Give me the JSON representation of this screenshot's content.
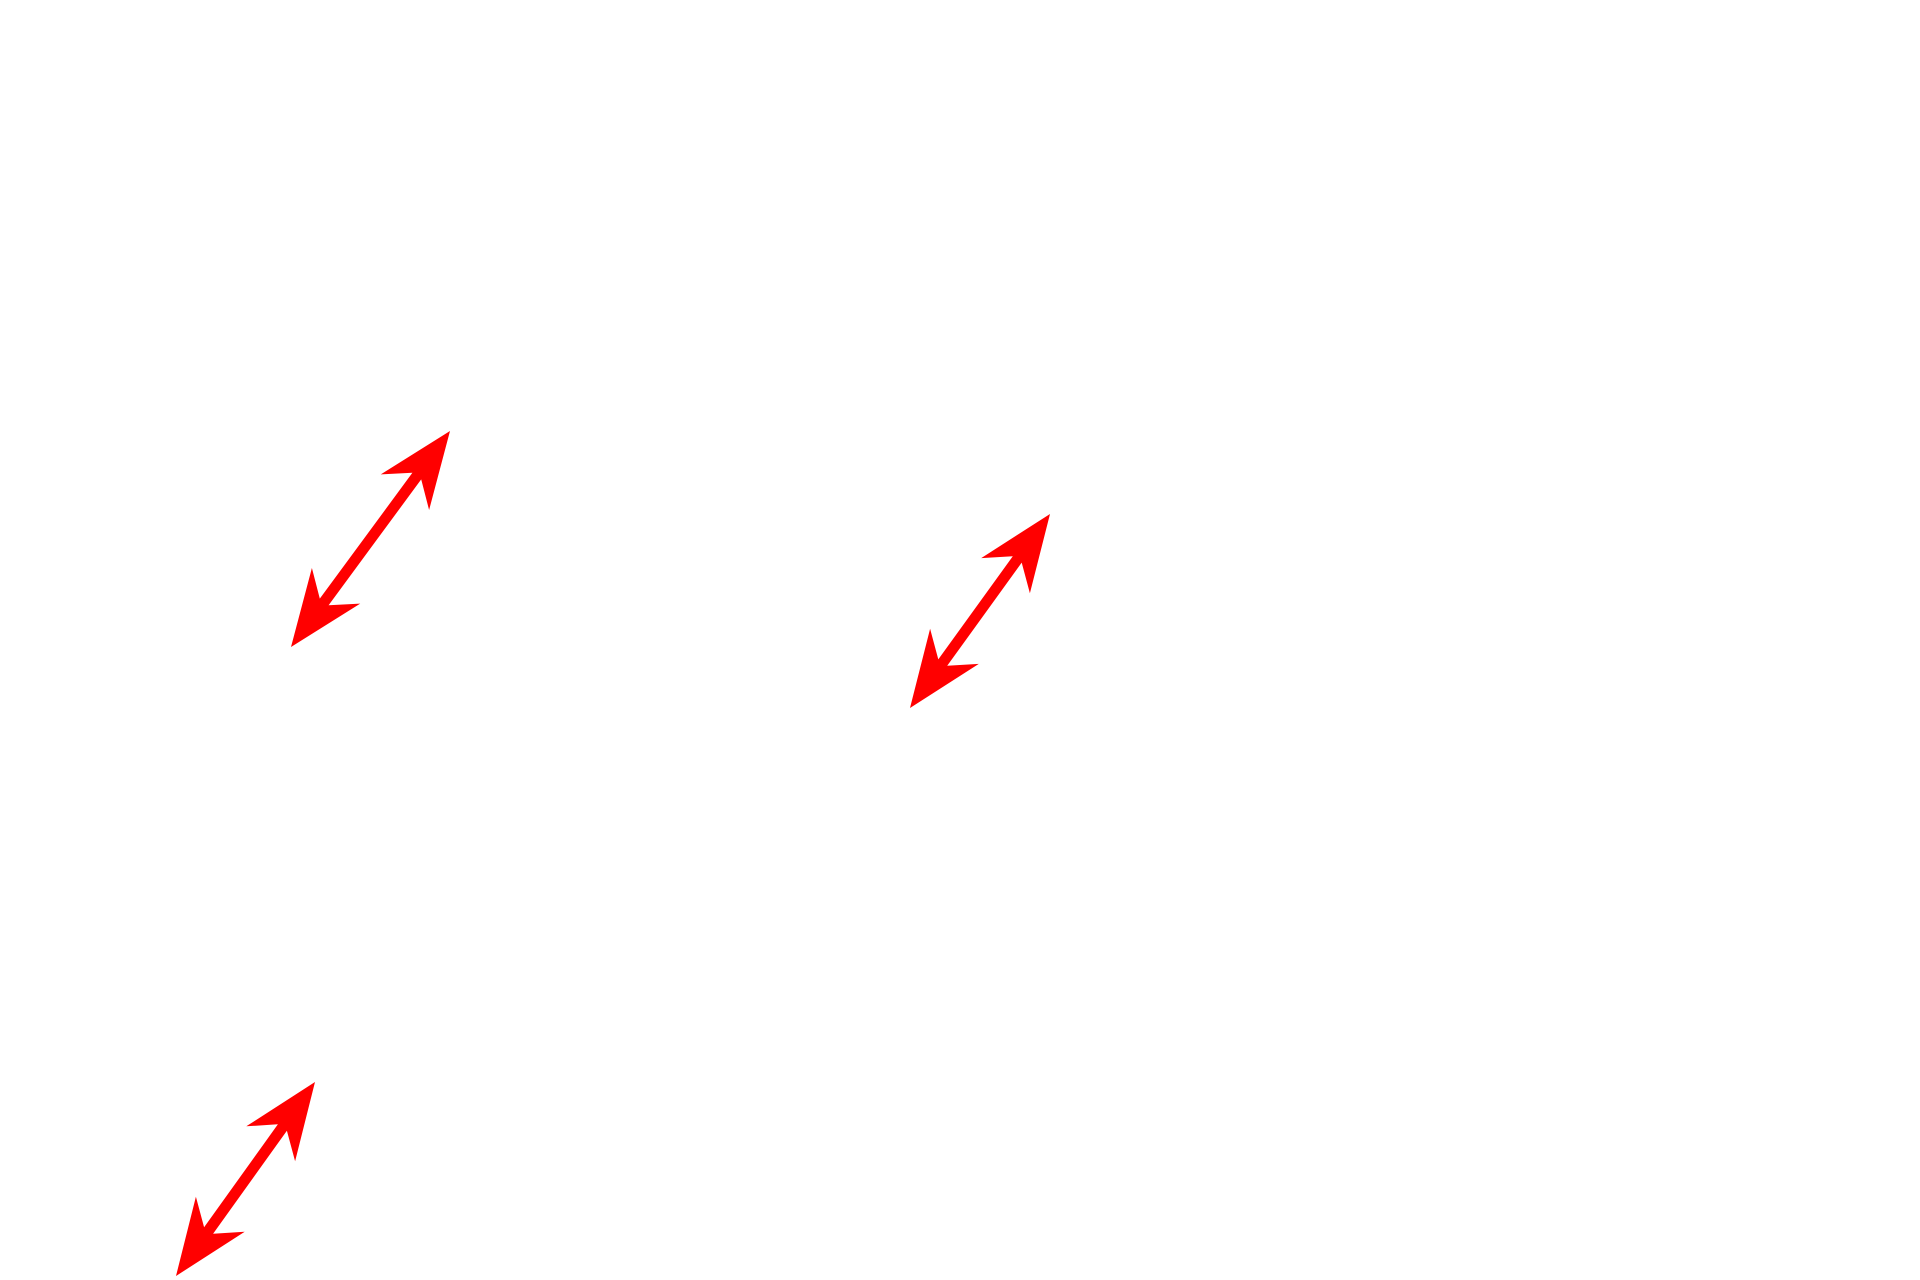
{
  "arrows": {
    "color": "#ff0000",
    "style": "double-headed",
    "icons": [
      "double-arrow-icon",
      "double-arrow-icon",
      "double-arrow-icon"
    ]
  }
}
